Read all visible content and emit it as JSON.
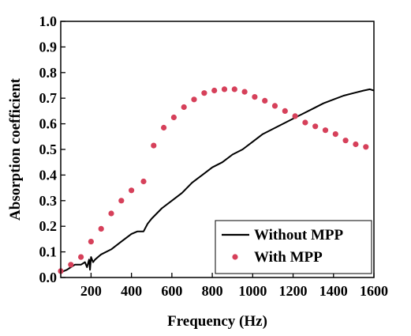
{
  "chart_data": {
    "type": "line",
    "xlabel": "Frequency (Hz)",
    "ylabel": "Absorption coefficient",
    "xlim": [
      50,
      1600
    ],
    "ylim": [
      0,
      1.0
    ],
    "xticks": [
      200,
      400,
      600,
      800,
      1000,
      1200,
      1400,
      1600
    ],
    "xtick_labels": [
      "200",
      "400",
      "600",
      "800",
      "1000",
      "1200",
      "1400",
      "1600"
    ],
    "yticks": [
      0,
      0.1,
      0.2,
      0.3,
      0.4,
      0.5,
      0.6,
      0.7,
      0.8,
      0.9,
      1.0
    ],
    "ytick_labels": [
      "0.0",
      "0.1",
      "0.2",
      "0.3",
      "0.4",
      "0.5",
      "0.6",
      "0.7",
      "0.8",
      "0.9",
      "1.0"
    ],
    "legend_position": "bottom-right",
    "grid": false,
    "series": [
      {
        "name": "Without MPP",
        "style": "line",
        "color": "#000000",
        "x": [
          50,
          80,
          100,
          120,
          150,
          170,
          180,
          190,
          195,
          200,
          210,
          220,
          250,
          300,
          350,
          400,
          430,
          460,
          480,
          500,
          550,
          600,
          650,
          700,
          750,
          800,
          850,
          900,
          950,
          1000,
          1050,
          1100,
          1150,
          1200,
          1250,
          1300,
          1350,
          1400,
          1450,
          1500,
          1550,
          1580,
          1600
        ],
        "y": [
          0.02,
          0.03,
          0.04,
          0.05,
          0.05,
          0.06,
          0.04,
          0.07,
          0.03,
          0.08,
          0.06,
          0.07,
          0.09,
          0.11,
          0.14,
          0.17,
          0.18,
          0.18,
          0.21,
          0.23,
          0.27,
          0.3,
          0.33,
          0.37,
          0.4,
          0.43,
          0.45,
          0.48,
          0.5,
          0.53,
          0.56,
          0.58,
          0.6,
          0.62,
          0.64,
          0.66,
          0.68,
          0.695,
          0.71,
          0.72,
          0.73,
          0.735,
          0.73
        ]
      },
      {
        "name": "With MPP",
        "style": "scatter",
        "color": "#d6405a",
        "x": [
          50,
          100,
          150,
          200,
          250,
          300,
          350,
          400,
          460,
          510,
          560,
          610,
          660,
          710,
          760,
          810,
          860,
          910,
          960,
          1010,
          1060,
          1110,
          1160,
          1210,
          1260,
          1310,
          1360,
          1410,
          1460,
          1510,
          1560
        ],
        "y": [
          0.025,
          0.05,
          0.08,
          0.14,
          0.19,
          0.25,
          0.3,
          0.34,
          0.375,
          0.515,
          0.585,
          0.625,
          0.665,
          0.695,
          0.72,
          0.73,
          0.735,
          0.735,
          0.725,
          0.705,
          0.69,
          0.67,
          0.65,
          0.63,
          0.605,
          0.59,
          0.575,
          0.56,
          0.535,
          0.52,
          0.51
        ]
      }
    ]
  }
}
